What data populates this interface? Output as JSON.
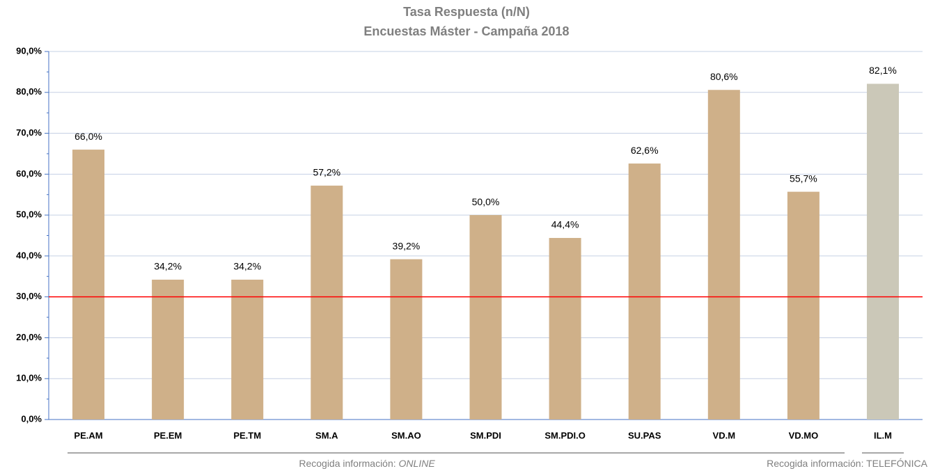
{
  "chart_data": {
    "type": "bar",
    "title": "Tasa Respuesta (n/N)",
    "subtitle": "Encuestas Máster - Campaña 2018",
    "categories": [
      "PE.AM",
      "PE.EM",
      "PE.TM",
      "SM.A",
      "SM.AO",
      "SM.PDI",
      "SM.PDI.O",
      "SU.PAS",
      "VD.M",
      "VD.MO",
      "IL.M"
    ],
    "values": [
      66.0,
      34.2,
      34.2,
      57.2,
      39.2,
      50.0,
      44.4,
      62.6,
      80.6,
      55.7,
      82.1
    ],
    "value_labels": [
      "66,0%",
      "34,2%",
      "34,2%",
      "57,2%",
      "39,2%",
      "50,0%",
      "44,4%",
      "62,6%",
      "80,6%",
      "55,7%",
      "82,1%"
    ],
    "colors": [
      "#cfb089",
      "#cfb089",
      "#cfb089",
      "#cfb089",
      "#cfb089",
      "#cfb089",
      "#cfb089",
      "#cfb089",
      "#cfb089",
      "#cfb089",
      "#cbc8b8"
    ],
    "ylim": [
      0,
      90
    ],
    "yticks": [
      {
        "value": 0,
        "label": "0,0%"
      },
      {
        "value": 10,
        "label": "10,0%"
      },
      {
        "value": 20,
        "label": "20,0%"
      },
      {
        "value": 30,
        "label": "30,0%"
      },
      {
        "value": 40,
        "label": "40,0%"
      },
      {
        "value": 50,
        "label": "50,0%"
      },
      {
        "value": 60,
        "label": "60,0%"
      },
      {
        "value": 70,
        "label": "70,0%"
      },
      {
        "value": 80,
        "label": "80,0%"
      },
      {
        "value": 90,
        "label": "90,0%"
      }
    ],
    "grid": true,
    "reference_line": {
      "value": 30,
      "color": "#ff0000"
    },
    "groups": [
      {
        "label": "Recogida información:",
        "method": "ONLINE"
      },
      {
        "label": "Recogida información:",
        "method": "TELEFÓNICA"
      }
    ]
  }
}
